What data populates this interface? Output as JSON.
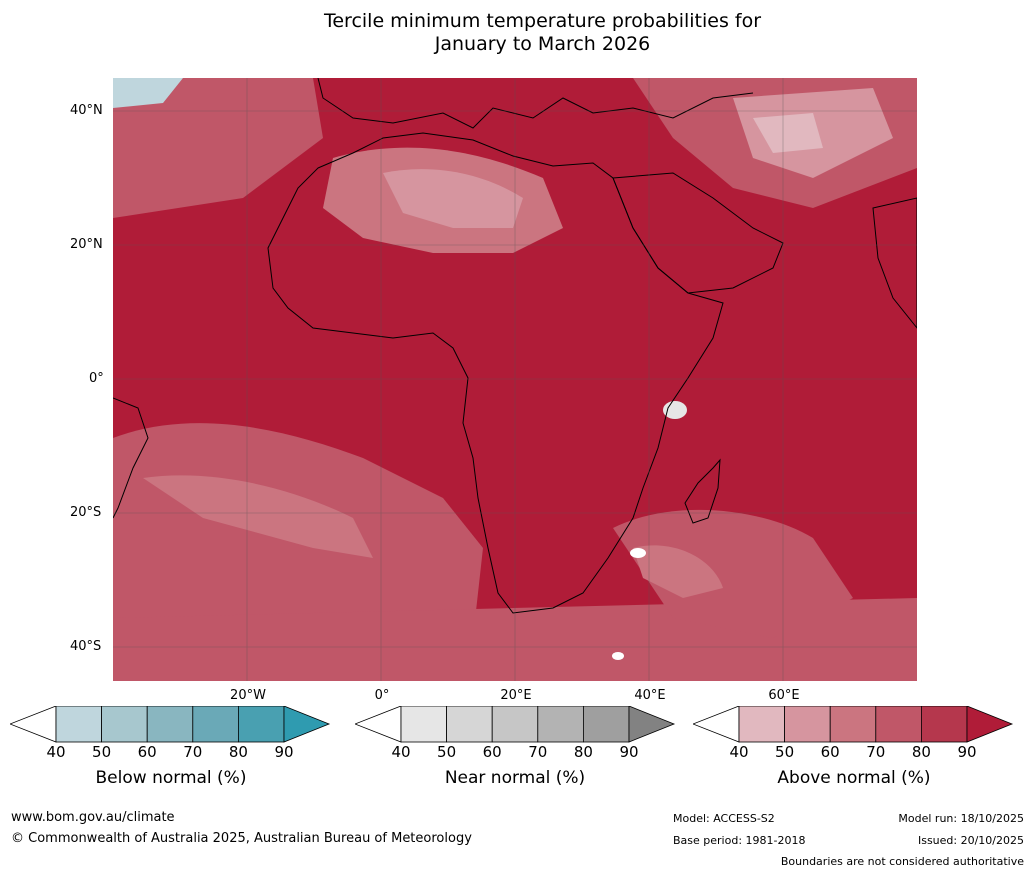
{
  "title": {
    "line1": "Tercile minimum temperature probabilities for",
    "line2": "January to March 2026"
  },
  "axes": {
    "lat_labels": [
      "40°N",
      "20°N",
      "0°",
      "20°S",
      "40°S"
    ],
    "lon_labels": [
      "20°W",
      "0°",
      "20°E",
      "40°E",
      "60°E"
    ]
  },
  "colorbars": [
    {
      "name": "Below normal (%)",
      "ticks": [
        "40",
        "50",
        "60",
        "70",
        "80",
        "90"
      ],
      "colors": [
        "#ffffff",
        "#bfd6dd",
        "#a7c7ce",
        "#89b6c0",
        "#6aa9b7",
        "#49a0b1",
        "#2f9bb0"
      ]
    },
    {
      "name": "Near normal (%)",
      "ticks": [
        "40",
        "50",
        "60",
        "70",
        "80",
        "90"
      ],
      "colors": [
        "#ffffff",
        "#e6e6e6",
        "#d6d6d6",
        "#c6c6c6",
        "#b3b3b3",
        "#9f9f9f",
        "#828282"
      ]
    },
    {
      "name": "Above normal (%)",
      "ticks": [
        "40",
        "50",
        "60",
        "70",
        "80",
        "90"
      ],
      "colors": [
        "#ffffff",
        "#e1b8bf",
        "#d6959f",
        "#cb7580",
        "#c05768",
        "#b5374d",
        "#b01c38"
      ]
    }
  ],
  "footer": {
    "url": "www.bom.gov.au/climate",
    "copyright": "© Commonwealth of Australia 2025, Australian Bureau of Meteorology",
    "model": "Model: ACCESS-S2",
    "base_period": "Base period: 1981-2018",
    "model_run": "Model run: 18/10/2025",
    "issued": "Issued: 20/10/2025",
    "boundaries_note": "Boundaries are not considered authoritative"
  }
}
